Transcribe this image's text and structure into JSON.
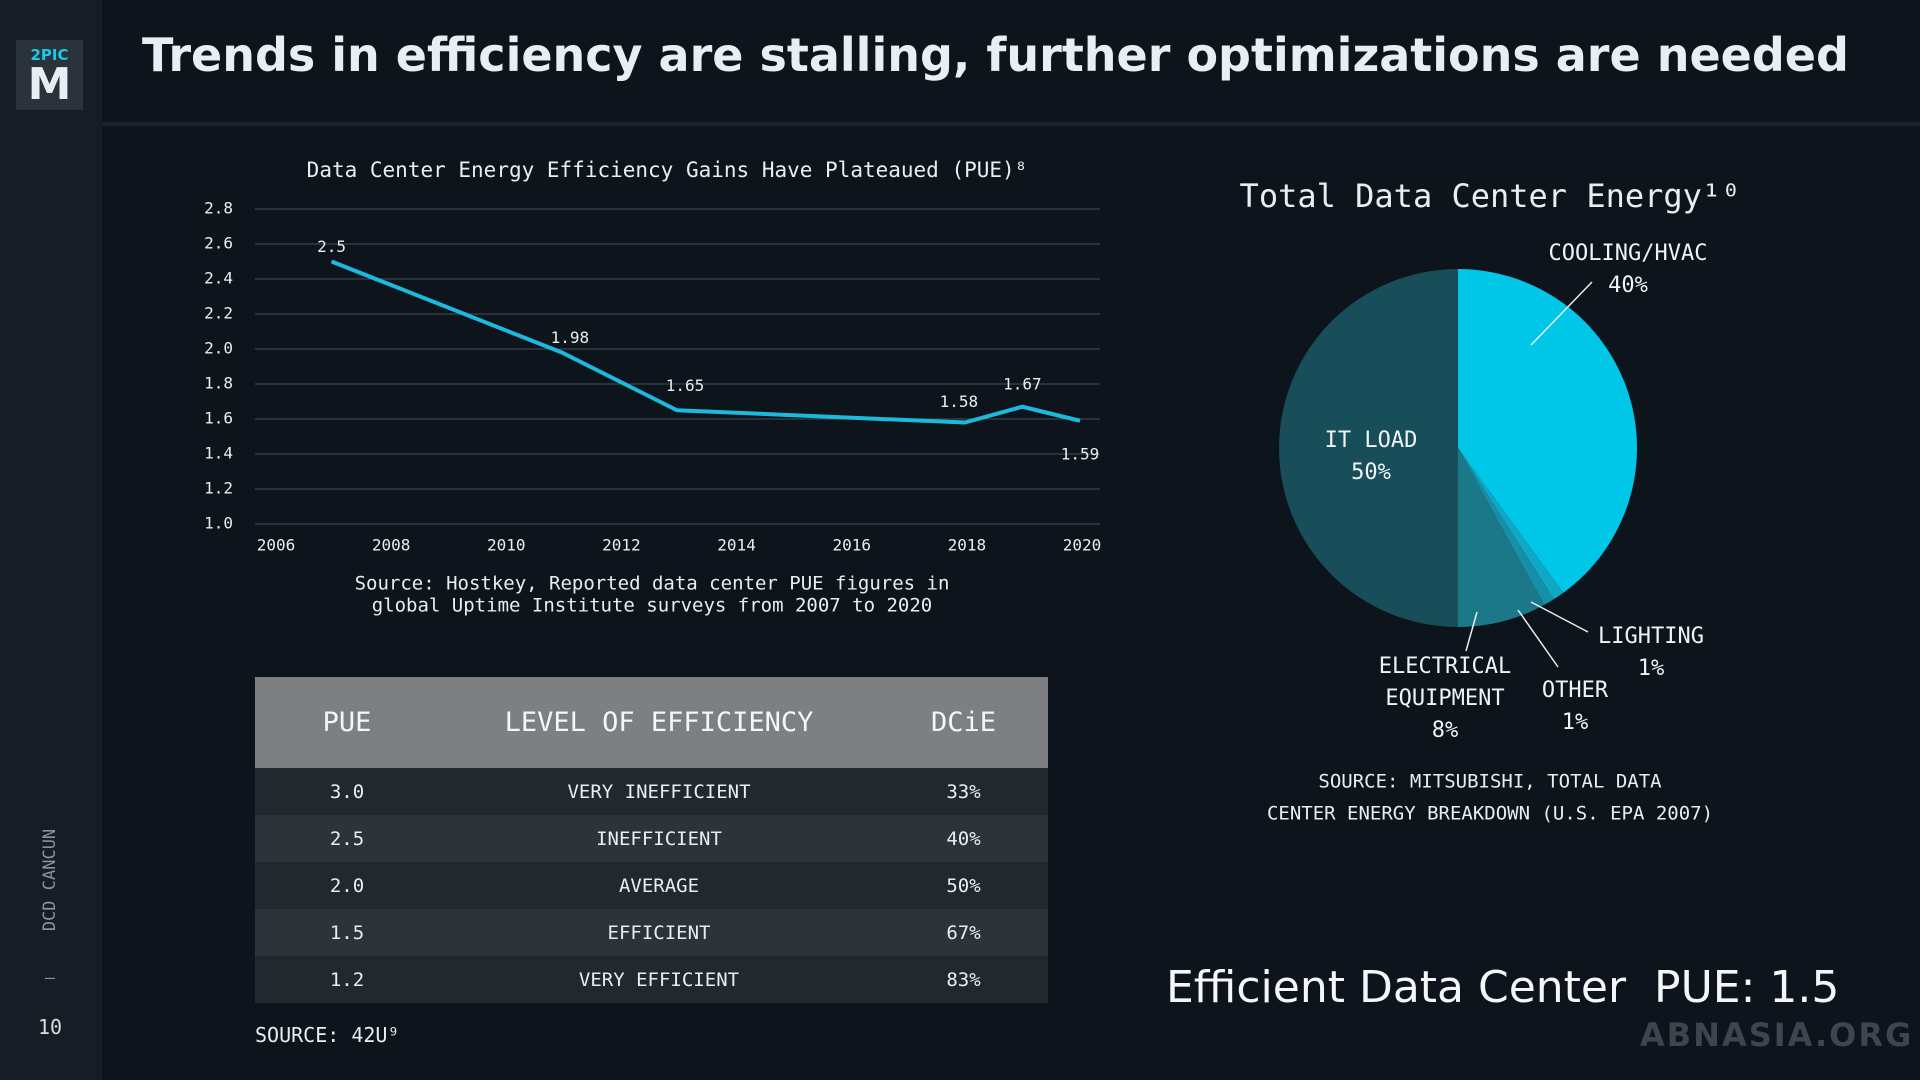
{
  "header": {
    "logo_top": "2PIC",
    "logo_letter": "M",
    "title": "Trends in efficiency are stalling, further optimizations are needed"
  },
  "sidebar": {
    "event": "DCD CANCUN",
    "separator": "—",
    "page_number": "10"
  },
  "chart_data": [
    {
      "type": "line",
      "title": "Data Center Energy Efficiency Gains Have Plateaued (PUE)⁸",
      "x": [
        2007,
        2011,
        2013,
        2018,
        2019,
        2020
      ],
      "series": [
        {
          "name": "PUE",
          "color": "#1cb9dd",
          "values": [
            2.5,
            1.98,
            1.65,
            1.58,
            1.67,
            1.59
          ]
        }
      ],
      "xlim": [
        2006,
        2020
      ],
      "xticks": [
        2006,
        2008,
        2010,
        2012,
        2014,
        2016,
        2018,
        2020
      ],
      "ylim": [
        1.0,
        2.8
      ],
      "yticks": [
        {
          "value": 1.0,
          "label": "1.0"
        },
        1.2,
        1.4,
        1.6,
        1.8,
        {
          "value": 2.0,
          "label": "2.0"
        },
        2.2,
        2.4,
        2.6,
        2.8
      ],
      "grid": true,
      "source": [
        "Source: Hostkey, Reported data center PUE figures in",
        "global Uptime Institute surveys from 2007 to 2020"
      ]
    },
    {
      "type": "pie",
      "title": "Total Data Center Energy¹⁰",
      "categories": [
        "COOLING/HVAC",
        "LIGHTING",
        "OTHER",
        "ELECTRICAL EQUIPMENT",
        "IT LOAD"
      ],
      "values": [
        40,
        1,
        1,
        8,
        50
      ],
      "value_labels": [
        "40%",
        "1%",
        "1%",
        "8%",
        "50%"
      ],
      "colors": [
        "#00c6e8",
        "#10a8c4",
        "#1590a8",
        "#1b7889",
        "#174e59"
      ],
      "source": [
        "SOURCE: MITSUBISHI, TOTAL DATA",
        "CENTER ENERGY BREAKDOWN (U.S. EPA 2007)"
      ]
    }
  ],
  "table": {
    "columns": [
      "PUE",
      "LEVEL OF EFFICIENCY",
      "DCiE"
    ],
    "rows": [
      [
        "3.0",
        "VERY INEFFICIENT",
        "33%"
      ],
      [
        "2.5",
        "INEFFICIENT",
        "40%"
      ],
      [
        "2.0",
        "AVERAGE",
        "50%"
      ],
      [
        "1.5",
        "EFFICIENT",
        "67%"
      ],
      [
        "1.2",
        "VERY EFFICIENT",
        "83%"
      ]
    ],
    "source": "SOURCE: 42U⁹"
  },
  "callout": "Efficient Data Center  PUE: 1.5",
  "watermark": "ABNASIA.ORG"
}
